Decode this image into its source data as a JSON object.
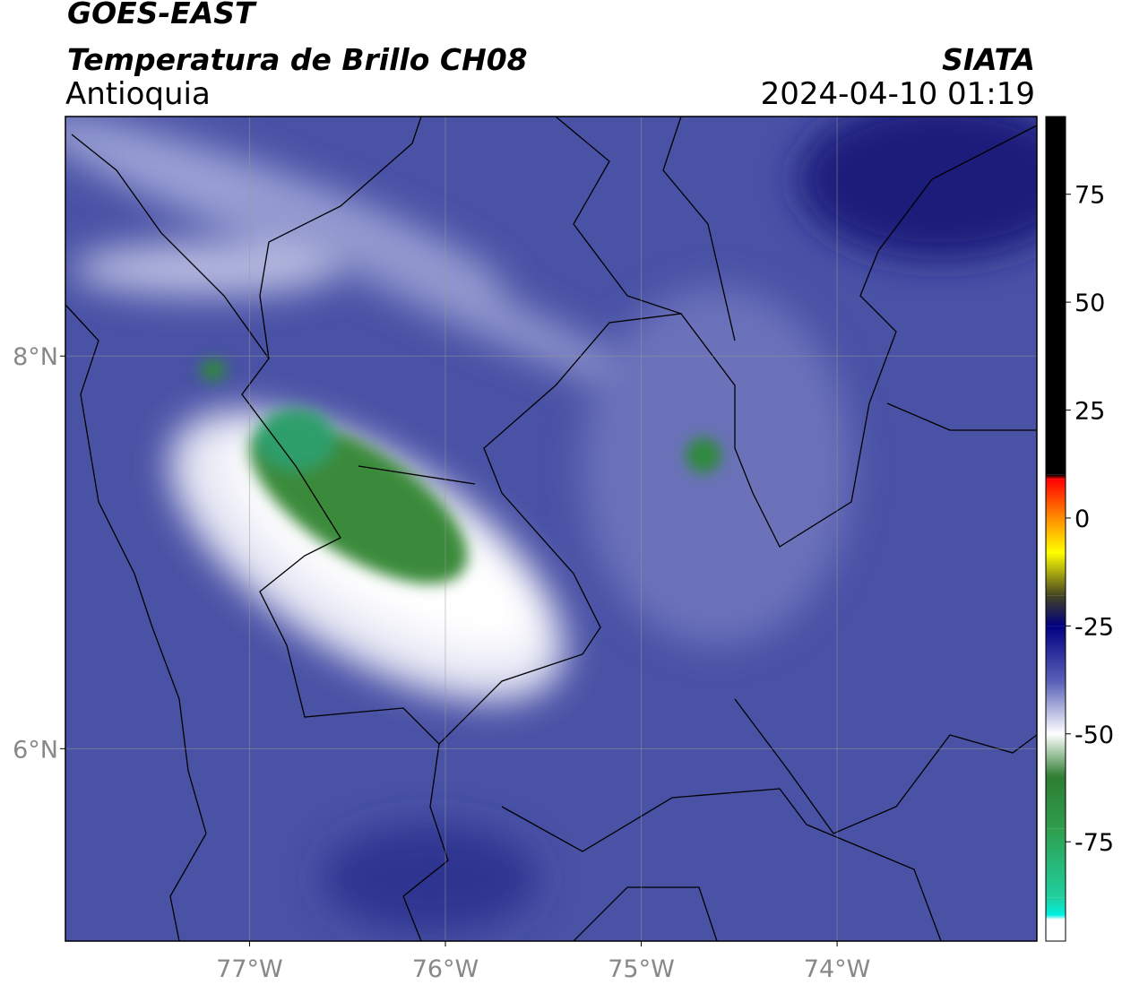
{
  "header": {
    "title": "GOES-EAST",
    "subtitle": "Temperatura de Brillo CH08",
    "region": "Antioquia",
    "source": "SIATA",
    "datetime": "2024-04-10 01:19"
  },
  "map": {
    "xlim": [
      -77.94,
      -72.98
    ],
    "ylim": [
      5.02,
      9.22
    ],
    "xticks": [
      {
        "value": -77,
        "label": "77°W"
      },
      {
        "value": -76,
        "label": "76°W"
      },
      {
        "value": -75,
        "label": "75°W"
      },
      {
        "value": -74,
        "label": "74°W"
      }
    ],
    "yticks": [
      {
        "value": 8,
        "label": "8°N"
      },
      {
        "value": 6,
        "label": "6°N"
      }
    ],
    "grid": true
  },
  "colorbar": {
    "lim": [
      -98,
      93
    ],
    "ticks": [
      75,
      50,
      25,
      0,
      -25,
      -50,
      -75
    ],
    "stops": [
      {
        "value": 93,
        "color": "#000000"
      },
      {
        "value": 10,
        "color": "#000000"
      },
      {
        "value": 9,
        "color": "#ff0000"
      },
      {
        "value": 0,
        "color": "#ff8c00"
      },
      {
        "value": -8,
        "color": "#ffff00"
      },
      {
        "value": -18,
        "color": "#444422"
      },
      {
        "value": -25,
        "color": "#000080"
      },
      {
        "value": -38,
        "color": "#5a62b8"
      },
      {
        "value": -50,
        "color": "#ffffff"
      },
      {
        "value": -60,
        "color": "#2e7d32"
      },
      {
        "value": -72,
        "color": "#2e9e4c"
      },
      {
        "value": -88,
        "color": "#20d0a0"
      },
      {
        "value": -92,
        "color": "#00f0e0"
      },
      {
        "value": -93,
        "color": "#ffffff"
      },
      {
        "value": -98,
        "color": "#ffffff"
      }
    ]
  }
}
